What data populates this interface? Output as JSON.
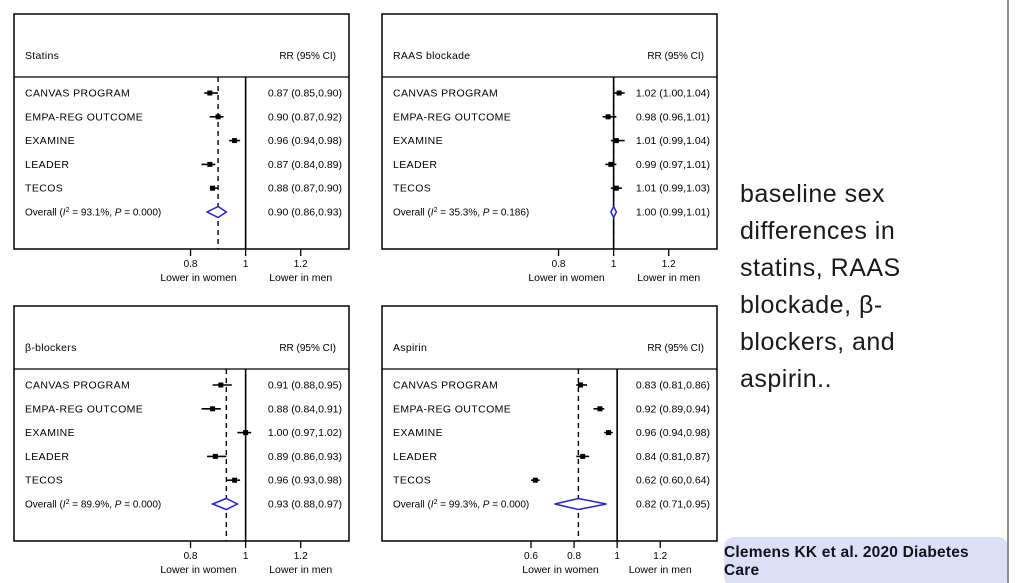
{
  "colors": {
    "diamond": "#2424c8",
    "citation_background": "#dcdff5",
    "slide_right_border": "#8e8e8e",
    "plot_ink": "#000000"
  },
  "side_note": {
    "lines": [
      "baseline sex",
      "differences in",
      "statins, RAAS",
      "blockade, β-",
      "blockers, and",
      "aspirin.."
    ]
  },
  "citation": {
    "text": "Clemens KK et al. 2020 Diabetes Care"
  },
  "chart_data": [
    {
      "type": "forest",
      "title": "Statins",
      "value_header": "RR (95% CI)",
      "studies": [
        {
          "name": "CANVAS PROGRAM",
          "rr": 0.87,
          "ci": [
            0.85,
            0.9
          ],
          "label": "0.87 (0.85,0.90)"
        },
        {
          "name": "EMPA-REG OUTCOME",
          "rr": 0.9,
          "ci": [
            0.87,
            0.92
          ],
          "label": "0.90 (0.87,0.92)"
        },
        {
          "name": "EXAMINE",
          "rr": 0.96,
          "ci": [
            0.94,
            0.98
          ],
          "label": "0.96 (0.94,0.98)"
        },
        {
          "name": "LEADER",
          "rr": 0.87,
          "ci": [
            0.84,
            0.89
          ],
          "label": "0.87 (0.84,0.89)"
        },
        {
          "name": "TECOS",
          "rr": 0.88,
          "ci": [
            0.87,
            0.9
          ],
          "label": "0.88 (0.87,0.90)"
        }
      ],
      "overall": {
        "name": "Overall",
        "i2": "93.1%",
        "p": "0.000",
        "rr": 0.9,
        "ci": [
          0.86,
          0.93
        ],
        "label": "0.90 (0.86,0.93)"
      },
      "axis": {
        "ticks": [
          0.8,
          1,
          1.2
        ],
        "xlim": [
          0.7,
          1.31
        ],
        "null_line": 1,
        "left_label": "Lower in women",
        "right_label": "Lower in men"
      }
    },
    {
      "type": "forest",
      "title": "RAAS blockade",
      "value_header": "RR (95% CI)",
      "studies": [
        {
          "name": "CANVAS PROGRAM",
          "rr": 1.02,
          "ci": [
            1.0,
            1.04
          ],
          "label": "1.02 (1.00,1.04)"
        },
        {
          "name": "EMPA-REG OUTCOME",
          "rr": 0.98,
          "ci": [
            0.96,
            1.01
          ],
          "label": "0.98 (0.96,1.01)"
        },
        {
          "name": "EXAMINE",
          "rr": 1.01,
          "ci": [
            0.99,
            1.04
          ],
          "label": "1.01 (0.99,1.04)"
        },
        {
          "name": "LEADER",
          "rr": 0.99,
          "ci": [
            0.97,
            1.01
          ],
          "label": "0.99 (0.97,1.01)"
        },
        {
          "name": "TECOS",
          "rr": 1.01,
          "ci": [
            0.99,
            1.03
          ],
          "label": "1.01 (0.99,1.03)"
        }
      ],
      "overall": {
        "name": "Overall",
        "i2": "35.3%",
        "p": "0.186",
        "rr": 1.0,
        "ci": [
          0.99,
          1.01
        ],
        "label": "1.00 (0.99,1.01)"
      },
      "axis": {
        "ticks": [
          0.8,
          1,
          1.2
        ],
        "xlim": [
          0.7,
          1.31
        ],
        "null_line": 1,
        "left_label": "Lower in women",
        "right_label": "Lower in men"
      }
    },
    {
      "type": "forest",
      "title": "β-blockers",
      "value_header": "RR (95% CI)",
      "studies": [
        {
          "name": "CANVAS PROGRAM",
          "rr": 0.91,
          "ci": [
            0.88,
            0.95
          ],
          "label": "0.91 (0.88,0.95)"
        },
        {
          "name": "EMPA-REG OUTCOME",
          "rr": 0.88,
          "ci": [
            0.84,
            0.91
          ],
          "label": "0.88 (0.84,0.91)"
        },
        {
          "name": "EXAMINE",
          "rr": 1.0,
          "ci": [
            0.97,
            1.02
          ],
          "label": "1.00 (0.97,1.02)"
        },
        {
          "name": "LEADER",
          "rr": 0.89,
          "ci": [
            0.86,
            0.93
          ],
          "label": "0.89 (0.86,0.93)"
        },
        {
          "name": "TECOS",
          "rr": 0.96,
          "ci": [
            0.93,
            0.98
          ],
          "label": "0.96 (0.93,0.98)"
        }
      ],
      "overall": {
        "name": "Overall",
        "i2": "89.9%",
        "p": "0.000",
        "rr": 0.93,
        "ci": [
          0.88,
          0.97
        ],
        "label": "0.93 (0.88,0.97)"
      },
      "axis": {
        "ticks": [
          0.8,
          1,
          1.2
        ],
        "xlim": [
          0.7,
          1.31
        ],
        "null_line": 1,
        "left_label": "Lower in women",
        "right_label": "Lower in men"
      }
    },
    {
      "type": "forest",
      "title": "Aspirin",
      "value_header": "RR (95% CI)",
      "studies": [
        {
          "name": "CANVAS PROGRAM",
          "rr": 0.83,
          "ci": [
            0.81,
            0.86
          ],
          "label": "0.83 (0.81,0.86)"
        },
        {
          "name": "EMPA-REG OUTCOME",
          "rr": 0.92,
          "ci": [
            0.89,
            0.94
          ],
          "label": "0.92 (0.89,0.94)"
        },
        {
          "name": "EXAMINE",
          "rr": 0.96,
          "ci": [
            0.94,
            0.98
          ],
          "label": "0.96 (0.94,0.98)"
        },
        {
          "name": "LEADER",
          "rr": 0.84,
          "ci": [
            0.81,
            0.87
          ],
          "label": "0.84 (0.81,0.87)"
        },
        {
          "name": "TECOS",
          "rr": 0.62,
          "ci": [
            0.6,
            0.64
          ],
          "label": "0.62 (0.60,0.64)"
        }
      ],
      "overall": {
        "name": "Overall",
        "i2": "99.3%",
        "p": "0.000",
        "rr": 0.82,
        "ci": [
          0.71,
          0.95
        ],
        "label": "0.82 (0.71,0.95)"
      },
      "axis": {
        "ticks": [
          0.6,
          0.8,
          1,
          1.2
        ],
        "xlim": [
          0.6,
          1.38
        ],
        "null_line": 1,
        "left_label": "Lower in women",
        "right_label": "Lower in men"
      }
    }
  ]
}
